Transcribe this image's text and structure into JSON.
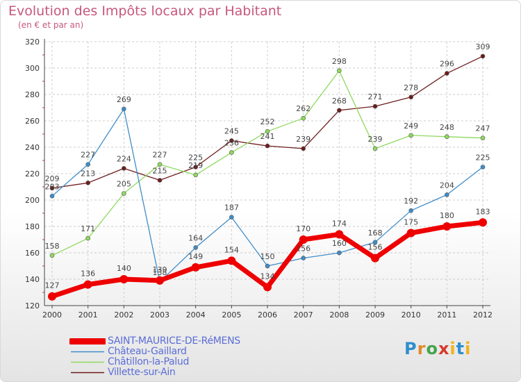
{
  "header": {
    "title": "Evolution des Impôts locaux par Habitant",
    "subtitle": "(en € et par an)"
  },
  "logo": {
    "text": "Proxiti"
  },
  "chart_data": {
    "type": "line",
    "title": "Evolution des Impôts locaux par Habitant",
    "subtitle": "(en € et par an)",
    "xlabel": "",
    "ylabel": "",
    "x": [
      "2000",
      "2001",
      "2002",
      "2003",
      "2004",
      "2005",
      "2006",
      "2007",
      "2008",
      "2009",
      "2010",
      "2011",
      "2012"
    ],
    "ylim": [
      120,
      320
    ],
    "yticks": [
      120,
      140,
      160,
      180,
      200,
      220,
      240,
      260,
      280,
      300,
      320
    ],
    "grid": true,
    "legend_position": "bottom-left",
    "series": [
      {
        "name": "SAINT-MAURICE-DE-RéMENS",
        "color": "#ee0000",
        "values": [
          127,
          136,
          140,
          139,
          149,
          154,
          134,
          170,
          174,
          156,
          175,
          180,
          183
        ]
      },
      {
        "name": "Château-Gaillard",
        "color": "#3f8dc9",
        "values": [
          203,
          227,
          269,
          138,
          164,
          187,
          150,
          156,
          160,
          168,
          192,
          204,
          225
        ]
      },
      {
        "name": "Châtillon-la-Palud",
        "color": "#8fd85e",
        "values": [
          158,
          171,
          205,
          227,
          219,
          236,
          252,
          262,
          298,
          239,
          249,
          248,
          247
        ]
      },
      {
        "name": "Villette-sur-Ain",
        "color": "#6e1c1c",
        "values": [
          209,
          213,
          224,
          215,
          225,
          245,
          241,
          239,
          268,
          271,
          278,
          296,
          309
        ]
      }
    ]
  }
}
